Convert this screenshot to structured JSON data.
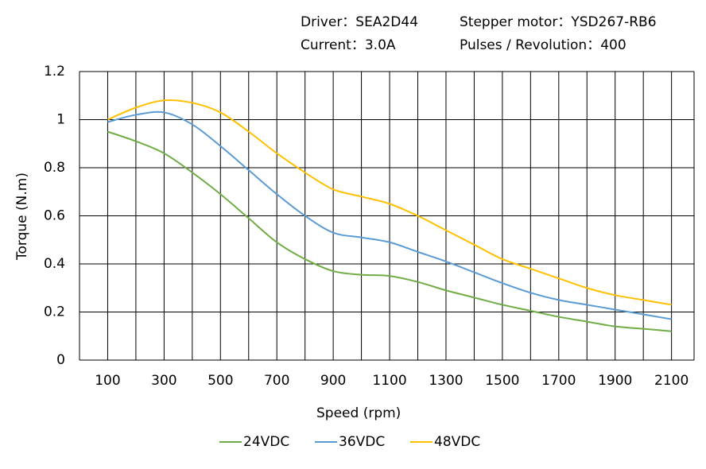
{
  "header": {
    "driver": "Driver：SEA2D44",
    "motor": "Stepper motor：YSD267-RB6",
    "current": "Current：3.0A",
    "pulses": "Pulses / Revolution：400"
  },
  "chart_data": {
    "type": "line",
    "x_label": "Speed  (rpm)",
    "y_label": "Torque (N.m)",
    "x": [
      100,
      200,
      300,
      400,
      500,
      600,
      700,
      800,
      900,
      1000,
      1100,
      1200,
      1300,
      1400,
      1500,
      1600,
      1700,
      1800,
      1900,
      2000,
      2100
    ],
    "series": [
      {
        "name": "24VDC",
        "color": "#70ad47",
        "values": [
          0.95,
          0.91,
          0.86,
          0.78,
          0.69,
          0.59,
          0.49,
          0.42,
          0.37,
          0.355,
          0.35,
          0.325,
          0.29,
          0.26,
          0.23,
          0.205,
          0.18,
          0.16,
          0.14,
          0.13,
          0.12
        ]
      },
      {
        "name": "36VDC",
        "color": "#5b9bd5",
        "values": [
          0.99,
          1.02,
          1.03,
          0.98,
          0.89,
          0.79,
          0.69,
          0.6,
          0.53,
          0.51,
          0.49,
          0.45,
          0.41,
          0.365,
          0.32,
          0.28,
          0.25,
          0.23,
          0.21,
          0.19,
          0.17
        ]
      },
      {
        "name": "48VDC",
        "color": "#ffc000",
        "values": [
          1.0,
          1.05,
          1.08,
          1.07,
          1.03,
          0.95,
          0.86,
          0.78,
          0.71,
          0.68,
          0.65,
          0.6,
          0.54,
          0.48,
          0.42,
          0.38,
          0.34,
          0.3,
          0.27,
          0.25,
          0.23
        ]
      }
    ],
    "xlim": [
      0,
      2180
    ],
    "xticks": [
      100,
      300,
      500,
      700,
      900,
      1100,
      1300,
      1500,
      1700,
      1900,
      2100
    ],
    "x_minor_ticks": [
      0,
      200,
      400,
      600,
      800,
      1000,
      1200,
      1400,
      1600,
      1800,
      2000
    ],
    "ylim": [
      0,
      1.2
    ],
    "yticks": [
      0,
      0.2,
      0.4,
      0.6,
      0.8,
      1,
      1.2
    ],
    "grid": true,
    "legend": "bottom"
  }
}
